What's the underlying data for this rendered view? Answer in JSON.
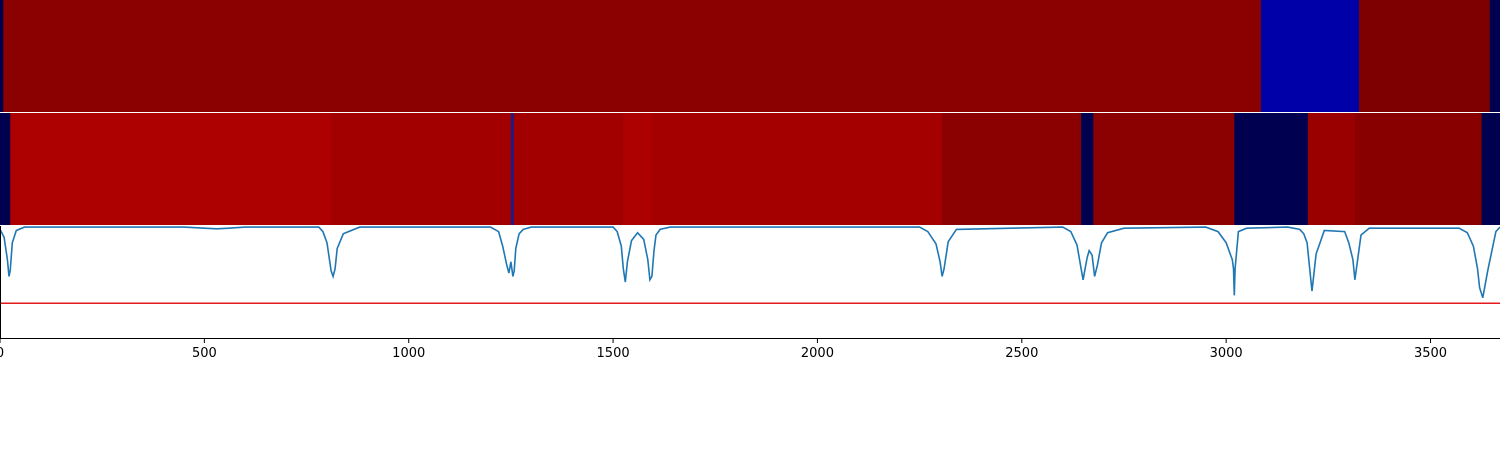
{
  "chart_data": [
    {
      "type": "heatmap",
      "title": "",
      "xlabel": "",
      "ylabel": "",
      "xlim": [
        0,
        3670
      ],
      "segments": [
        {
          "start": 0,
          "end": 8,
          "color": "#000050"
        },
        {
          "start": 8,
          "end": 3085,
          "color": "#8b0000"
        },
        {
          "start": 3085,
          "end": 3325,
          "color": "#0000a8"
        },
        {
          "start": 3325,
          "end": 3645,
          "color": "#7f0000"
        },
        {
          "start": 3645,
          "end": 3670,
          "color": "#000050"
        }
      ]
    },
    {
      "type": "heatmap",
      "title": "",
      "xlabel": "",
      "ylabel": "",
      "xlim": [
        0,
        3670
      ],
      "segments": [
        {
          "start": 0,
          "end": 25,
          "color": "#000050"
        },
        {
          "start": 25,
          "end": 810,
          "color": "#ad0000"
        },
        {
          "start": 810,
          "end": 1250,
          "color": "#a20000"
        },
        {
          "start": 1250,
          "end": 1257,
          "color": "#1a1a8c"
        },
        {
          "start": 1257,
          "end": 1525,
          "color": "#a20000"
        },
        {
          "start": 1525,
          "end": 1595,
          "color": "#ad0000"
        },
        {
          "start": 1595,
          "end": 2305,
          "color": "#a50000"
        },
        {
          "start": 2305,
          "end": 2645,
          "color": "#8b0000"
        },
        {
          "start": 2645,
          "end": 2675,
          "color": "#000050"
        },
        {
          "start": 2675,
          "end": 3020,
          "color": "#8b0000"
        },
        {
          "start": 3020,
          "end": 3200,
          "color": "#000050"
        },
        {
          "start": 3200,
          "end": 3315,
          "color": "#9b0000"
        },
        {
          "start": 3315,
          "end": 3625,
          "color": "#890000"
        },
        {
          "start": 3625,
          "end": 3670,
          "color": "#000050"
        }
      ]
    },
    {
      "type": "line",
      "title": "",
      "xlabel": "",
      "ylabel": "",
      "xlim": [
        0,
        3670
      ],
      "ylim": [
        0,
        1
      ],
      "xticks": [
        "0",
        "500",
        "1000",
        "1500",
        "2000",
        "2500",
        "3000",
        "3500"
      ],
      "xtick_values": [
        0,
        500,
        1000,
        1500,
        2000,
        2500,
        3000,
        3500
      ],
      "threshold": {
        "value": 0.31,
        "color": "#e31a1c"
      },
      "series": [
        {
          "color": "#1f77b4",
          "x": [
            0,
            10,
            18,
            22,
            25,
            30,
            40,
            60,
            450,
            500,
            530,
            560,
            600,
            780,
            790,
            800,
            810,
            815,
            820,
            825,
            840,
            880,
            900,
            1200,
            1220,
            1230,
            1240,
            1245,
            1250,
            1255,
            1258,
            1262,
            1270,
            1280,
            1300,
            1500,
            1510,
            1520,
            1525,
            1530,
            1535,
            1545,
            1560,
            1575,
            1585,
            1590,
            1595,
            1600,
            1605,
            1615,
            1640,
            2250,
            2270,
            2290,
            2300,
            2305,
            2310,
            2320,
            2340,
            2600,
            2620,
            2635,
            2645,
            2650,
            2655,
            2660,
            2665,
            2672,
            2678,
            2685,
            2695,
            2710,
            2750,
            2950,
            2980,
            3000,
            3010,
            3015,
            3018,
            3020,
            3022,
            3030,
            3050,
            3150,
            3180,
            3190,
            3198,
            3205,
            3210,
            3220,
            3240,
            3290,
            3300,
            3310,
            3315,
            3320,
            3330,
            3350,
            3570,
            3590,
            3605,
            3615,
            3620,
            3628,
            3640,
            3660,
            3670
          ],
          "y": [
            0.97,
            0.9,
            0.7,
            0.55,
            0.6,
            0.85,
            0.96,
            0.99,
            0.99,
            0.98,
            0.975,
            0.98,
            0.99,
            0.99,
            0.95,
            0.85,
            0.6,
            0.55,
            0.62,
            0.8,
            0.93,
            0.99,
            0.99,
            0.99,
            0.95,
            0.82,
            0.65,
            0.58,
            0.68,
            0.55,
            0.6,
            0.8,
            0.93,
            0.97,
            0.99,
            0.99,
            0.95,
            0.82,
            0.62,
            0.5,
            0.68,
            0.87,
            0.94,
            0.88,
            0.7,
            0.52,
            0.55,
            0.78,
            0.92,
            0.97,
            0.99,
            0.99,
            0.95,
            0.84,
            0.68,
            0.55,
            0.62,
            0.86,
            0.97,
            0.99,
            0.95,
            0.83,
            0.62,
            0.52,
            0.62,
            0.72,
            0.78,
            0.74,
            0.55,
            0.65,
            0.85,
            0.94,
            0.98,
            0.99,
            0.95,
            0.85,
            0.75,
            0.7,
            0.62,
            0.38,
            0.62,
            0.95,
            0.98,
            0.99,
            0.97,
            0.93,
            0.85,
            0.6,
            0.42,
            0.75,
            0.96,
            0.95,
            0.85,
            0.7,
            0.52,
            0.65,
            0.92,
            0.98,
            0.98,
            0.94,
            0.82,
            0.62,
            0.45,
            0.36,
            0.6,
            0.95,
            0.99
          ]
        }
      ]
    }
  ]
}
